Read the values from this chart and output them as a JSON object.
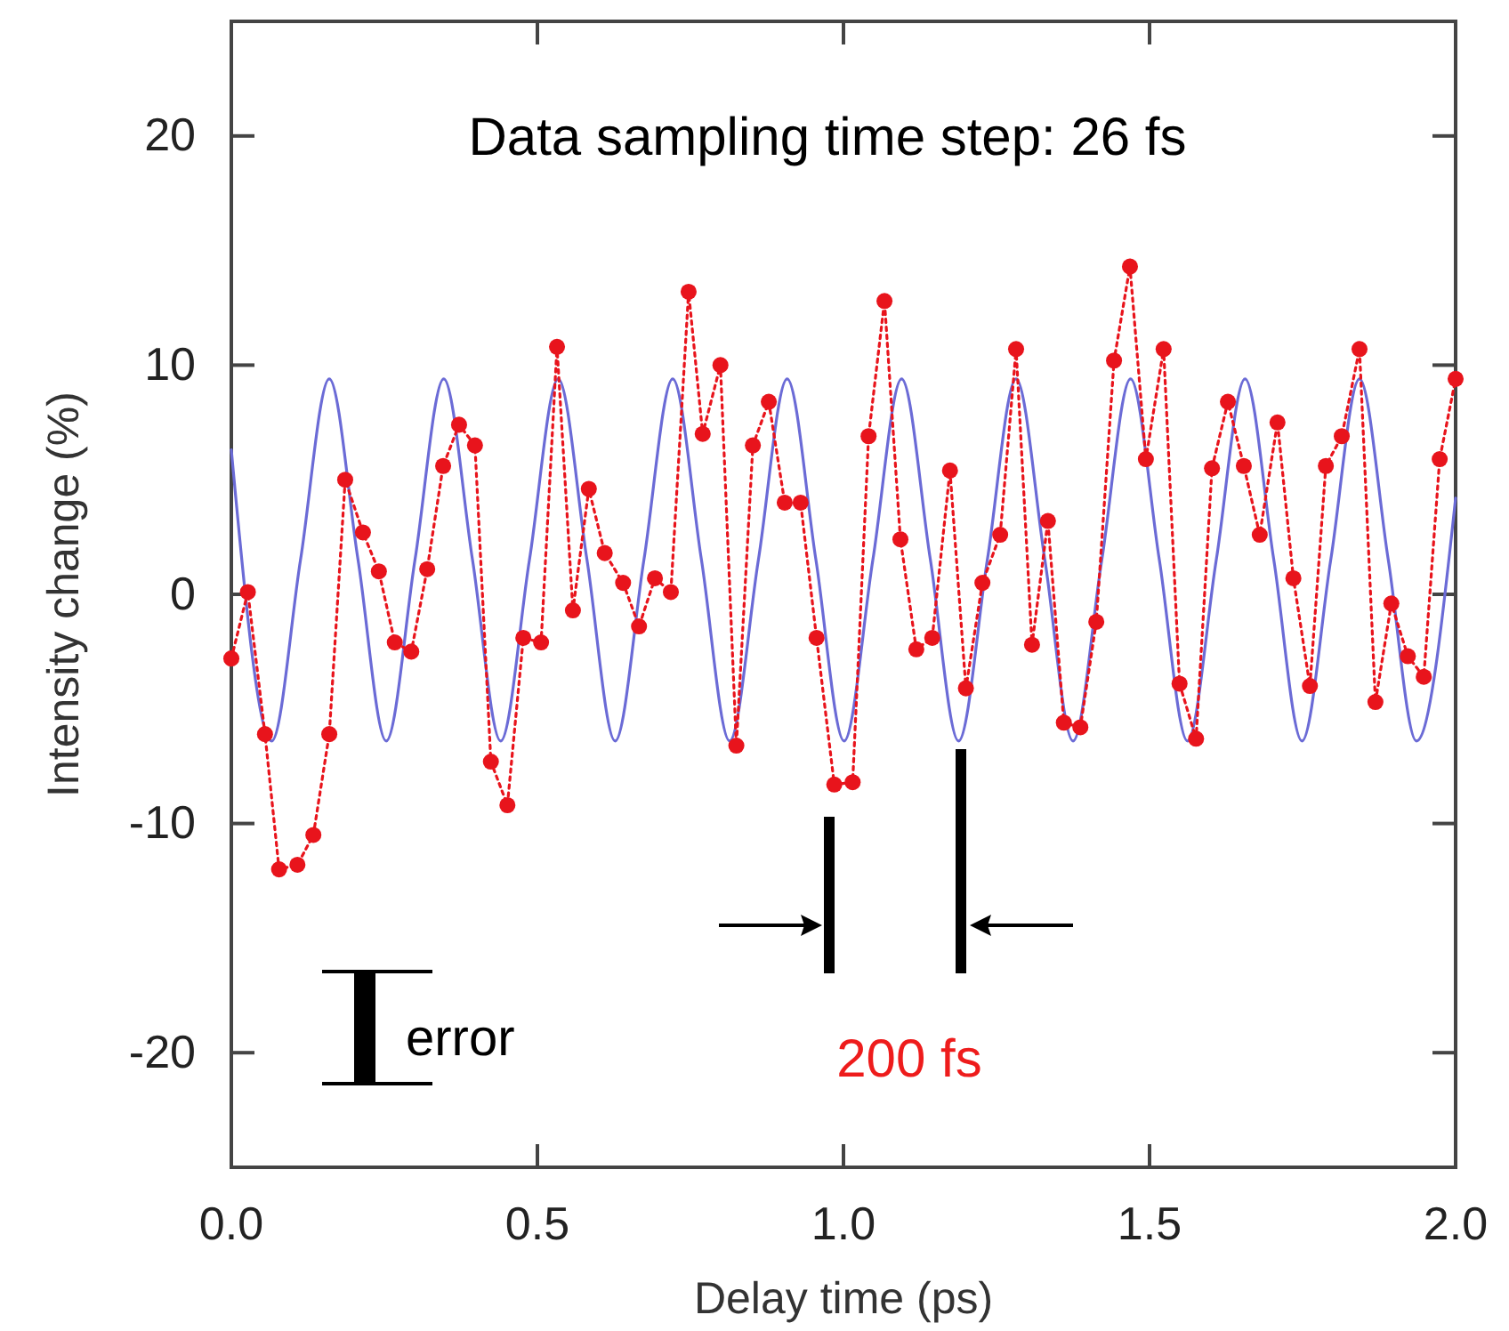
{
  "chart_data": {
    "type": "line",
    "xlabel": "Delay time (ps)",
    "ylabel": "Intensity change  (%)",
    "xlim": [
      0,
      2
    ],
    "ylim": [
      -25,
      25
    ],
    "xticks": [
      {
        "value": 0,
        "label": "0.0"
      },
      {
        "value": 0.5,
        "label": "0.5"
      },
      {
        "value": 1,
        "label": "1.0"
      },
      {
        "value": 1.5,
        "label": "1.5"
      },
      {
        "value": 2,
        "label": "2.0"
      }
    ],
    "yticks": [
      -20,
      -10,
      0,
      10,
      20
    ],
    "grid": false,
    "annotations": [
      "Data sampling time step: 26 fs",
      "error",
      "200 fs"
    ],
    "series": [
      {
        "color": "#6b6bd6",
        "marker": "none",
        "line_style": "solid",
        "x": [
          0,
          0.066,
          0.113,
          0.16,
          0.207,
          0.253,
          0.3,
          0.347,
          0.394,
          0.44,
          0.487,
          0.534,
          0.581,
          0.627,
          0.674,
          0.721,
          0.768,
          0.814,
          0.861,
          0.908,
          0.955,
          1.001,
          1.048,
          1.095,
          1.142,
          1.188,
          1.235,
          1.282,
          1.329,
          1.375,
          1.422,
          1.469,
          1.516,
          1.562,
          1.609,
          1.656,
          1.703,
          1.749,
          1.796,
          1.843,
          1.89,
          1.936,
          2.0
        ],
        "values": [
          6.3,
          -6.4,
          1.5,
          9.4,
          1.5,
          -6.4,
          1.5,
          9.4,
          1.5,
          -6.4,
          1.5,
          9.4,
          1.5,
          -6.4,
          1.5,
          9.4,
          1.5,
          -6.4,
          1.5,
          9.4,
          1.5,
          -6.4,
          1.5,
          9.4,
          1.5,
          -6.4,
          1.5,
          9.4,
          1.5,
          -6.4,
          1.5,
          9.4,
          1.5,
          -6.4,
          1.5,
          9.4,
          1.5,
          -6.4,
          1.5,
          9.4,
          1.5,
          -6.4,
          4.2
        ]
      },
      {
        "color": "#e8141c",
        "marker": "circle",
        "line_style": "dotted",
        "x": [
          0,
          0.027,
          0.055,
          0.078,
          0.108,
          0.134,
          0.16,
          0.186,
          0.215,
          0.241,
          0.267,
          0.294,
          0.32,
          0.346,
          0.372,
          0.398,
          0.424,
          0.451,
          0.477,
          0.506,
          0.532,
          0.558,
          0.584,
          0.61,
          0.64,
          0.666,
          0.692,
          0.718,
          0.747,
          0.77,
          0.799,
          0.825,
          0.852,
          0.878,
          0.904,
          0.93,
          0.956,
          0.985,
          1.015,
          1.041,
          1.067,
          1.093,
          1.119,
          1.145,
          1.174,
          1.2,
          1.227,
          1.256,
          1.282,
          1.308,
          1.334,
          1.36,
          1.387,
          1.413,
          1.442,
          1.468,
          1.494,
          1.523,
          1.549,
          1.576,
          1.602,
          1.628,
          1.654,
          1.68,
          1.709,
          1.735,
          1.762,
          1.788,
          1.814,
          1.843,
          1.869,
          1.895,
          1.922,
          1.948,
          1.974,
          2.0
        ],
        "values": [
          -2.8,
          0.1,
          -6.1,
          -12.0,
          -11.8,
          -10.5,
          -6.1,
          5.0,
          2.7,
          1.0,
          -2.1,
          -2.5,
          1.1,
          5.6,
          7.4,
          6.5,
          -7.3,
          -9.2,
          -1.9,
          -2.1,
          10.8,
          -0.7,
          4.6,
          1.8,
          0.5,
          -1.4,
          0.7,
          0.1,
          13.2,
          7.0,
          10.0,
          -6.6,
          6.5,
          8.4,
          4.0,
          4.0,
          -1.9,
          -8.3,
          -8.2,
          6.9,
          12.8,
          2.4,
          -2.4,
          -1.9,
          5.4,
          -4.1,
          0.5,
          2.6,
          10.7,
          -2.2,
          3.2,
          -5.6,
          -5.8,
          -1.2,
          10.2,
          14.3,
          5.9,
          10.7,
          -3.9,
          -6.3,
          5.5,
          8.4,
          5.6,
          2.6,
          7.5,
          0.7,
          -4.0,
          5.6,
          6.9,
          10.7,
          -4.7,
          -0.4,
          -2.7,
          -3.6,
          5.9,
          9.4
        ]
      }
    ]
  }
}
